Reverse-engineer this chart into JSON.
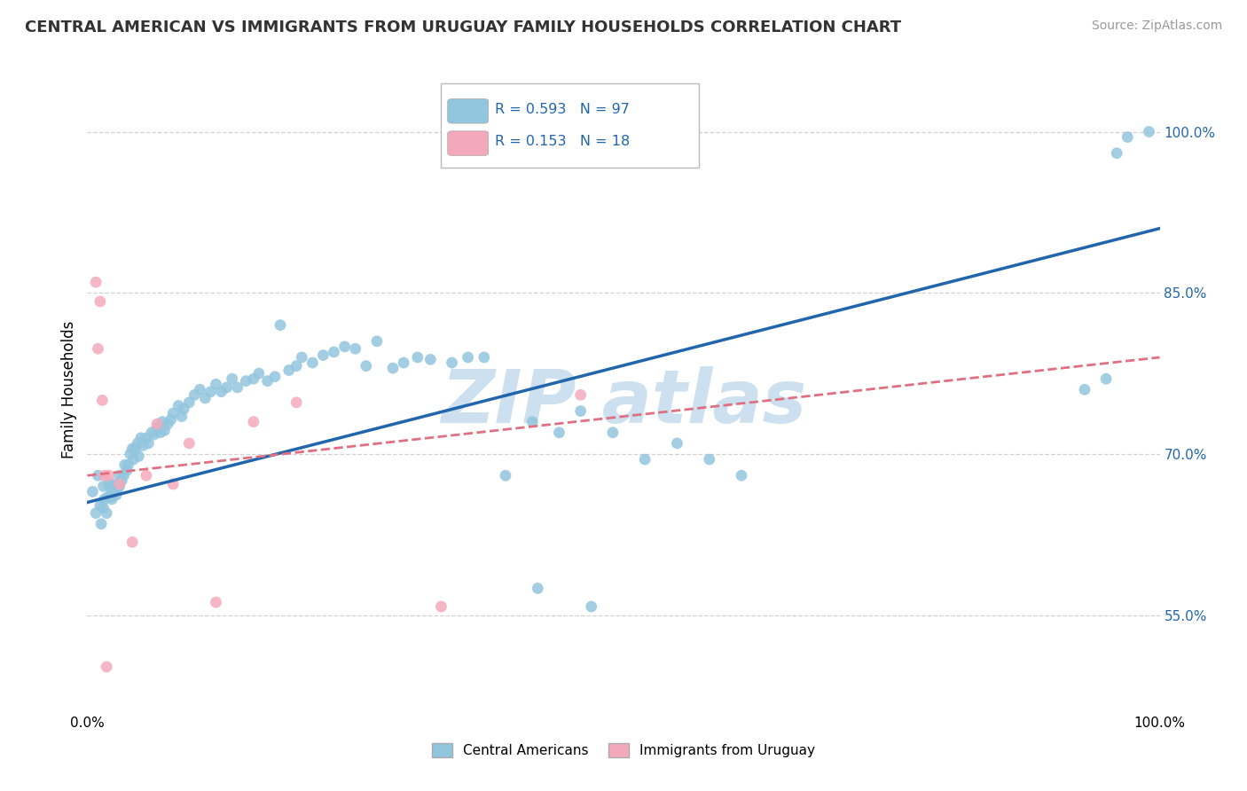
{
  "title": "CENTRAL AMERICAN VS IMMIGRANTS FROM URUGUAY FAMILY HOUSEHOLDS CORRELATION CHART",
  "source": "Source: ZipAtlas.com",
  "ylabel": "Family Households",
  "xlim": [
    0.0,
    1.0
  ],
  "ylim": [
    0.46,
    1.06
  ],
  "xtick_positions": [
    0.0,
    1.0
  ],
  "xtick_labels": [
    "0.0%",
    "100.0%"
  ],
  "ytick_values": [
    0.55,
    0.7,
    0.85,
    1.0
  ],
  "ytick_labels": [
    "55.0%",
    "70.0%",
    "85.0%",
    "100.0%"
  ],
  "legend_label1": "Central Americans",
  "legend_label2": "Immigrants from Uruguay",
  "blue_color": "#92c5de",
  "pink_color": "#f4a9bb",
  "blue_line_color": "#2166ac",
  "pink_line_color": "#e07080",
  "watermark_color": "#cce0f0",
  "background_color": "#ffffff",
  "grid_color": "#cccccc",
  "title_color": "#333333",
  "source_color": "#999999",
  "blue_scatter_x": [
    0.005,
    0.008,
    0.01,
    0.012,
    0.013,
    0.015,
    0.015,
    0.016,
    0.018,
    0.019,
    0.02,
    0.021,
    0.022,
    0.023,
    0.024,
    0.025,
    0.026,
    0.027,
    0.028,
    0.03,
    0.03,
    0.032,
    0.034,
    0.035,
    0.037,
    0.038,
    0.04,
    0.042,
    0.043,
    0.045,
    0.047,
    0.048,
    0.05,
    0.052,
    0.055,
    0.057,
    0.06,
    0.062,
    0.065,
    0.068,
    0.07,
    0.072,
    0.075,
    0.078,
    0.08,
    0.085,
    0.088,
    0.09,
    0.095,
    0.1,
    0.105,
    0.11,
    0.115,
    0.12,
    0.125,
    0.13,
    0.135,
    0.14,
    0.148,
    0.155,
    0.16,
    0.168,
    0.175,
    0.18,
    0.188,
    0.195,
    0.2,
    0.21,
    0.22,
    0.23,
    0.24,
    0.25,
    0.26,
    0.27,
    0.285,
    0.295,
    0.308,
    0.32,
    0.34,
    0.355,
    0.37,
    0.39,
    0.415,
    0.44,
    0.46,
    0.49,
    0.52,
    0.55,
    0.58,
    0.61,
    0.42,
    0.47,
    0.93,
    0.95,
    0.96,
    0.97,
    0.99
  ],
  "blue_scatter_y": [
    0.665,
    0.645,
    0.68,
    0.652,
    0.635,
    0.67,
    0.65,
    0.658,
    0.645,
    0.66,
    0.672,
    0.66,
    0.668,
    0.658,
    0.672,
    0.665,
    0.67,
    0.662,
    0.668,
    0.68,
    0.67,
    0.675,
    0.68,
    0.69,
    0.685,
    0.69,
    0.7,
    0.705,
    0.695,
    0.705,
    0.71,
    0.698,
    0.715,
    0.708,
    0.715,
    0.71,
    0.72,
    0.718,
    0.725,
    0.72,
    0.73,
    0.722,
    0.728,
    0.732,
    0.738,
    0.745,
    0.735,
    0.742,
    0.748,
    0.755,
    0.76,
    0.752,
    0.758,
    0.765,
    0.758,
    0.762,
    0.77,
    0.762,
    0.768,
    0.77,
    0.775,
    0.768,
    0.772,
    0.82,
    0.778,
    0.782,
    0.79,
    0.785,
    0.792,
    0.795,
    0.8,
    0.798,
    0.782,
    0.805,
    0.78,
    0.785,
    0.79,
    0.788,
    0.785,
    0.79,
    0.79,
    0.68,
    0.73,
    0.72,
    0.74,
    0.72,
    0.695,
    0.71,
    0.695,
    0.68,
    0.575,
    0.558,
    0.76,
    0.77,
    0.98,
    0.995,
    1.0
  ],
  "pink_scatter_x": [
    0.008,
    0.01,
    0.012,
    0.014,
    0.016,
    0.018,
    0.02,
    0.03,
    0.042,
    0.055,
    0.065,
    0.08,
    0.095,
    0.12,
    0.155,
    0.195,
    0.33,
    0.46
  ],
  "pink_scatter_y": [
    0.86,
    0.798,
    0.842,
    0.75,
    0.68,
    0.502,
    0.68,
    0.672,
    0.618,
    0.68,
    0.728,
    0.672,
    0.71,
    0.562,
    0.73,
    0.748,
    0.558,
    0.755
  ]
}
